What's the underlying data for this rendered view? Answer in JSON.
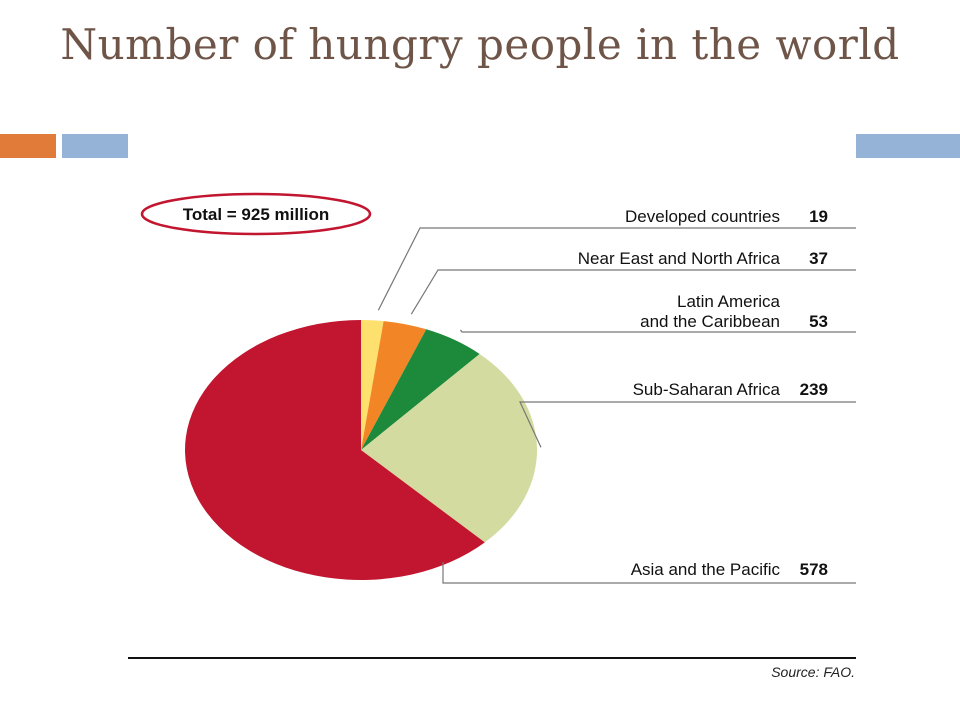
{
  "slide": {
    "title": "Number of hungry people in the world",
    "accent_colors": [
      "#e07b39",
      "#95b3d7"
    ]
  },
  "chart_data": {
    "type": "pie",
    "total_label": "Total = 925 million",
    "slices": [
      {
        "label_lines": [
          "Developed countries"
        ],
        "value": 19,
        "color": "#fde06e"
      },
      {
        "label_lines": [
          "Near East and North Africa"
        ],
        "value": 37,
        "color": "#f28525"
      },
      {
        "label_lines": [
          "Latin America",
          "and the Caribbean"
        ],
        "value": 53,
        "color": "#1c8a3a"
      },
      {
        "label_lines": [
          "Sub-Saharan Africa"
        ],
        "value": 239,
        "color": "#d3dba0"
      },
      {
        "label_lines": [
          "Asia and the Pacific"
        ],
        "value": 578,
        "color": "#c2152f"
      }
    ],
    "source": "Source: FAO."
  }
}
